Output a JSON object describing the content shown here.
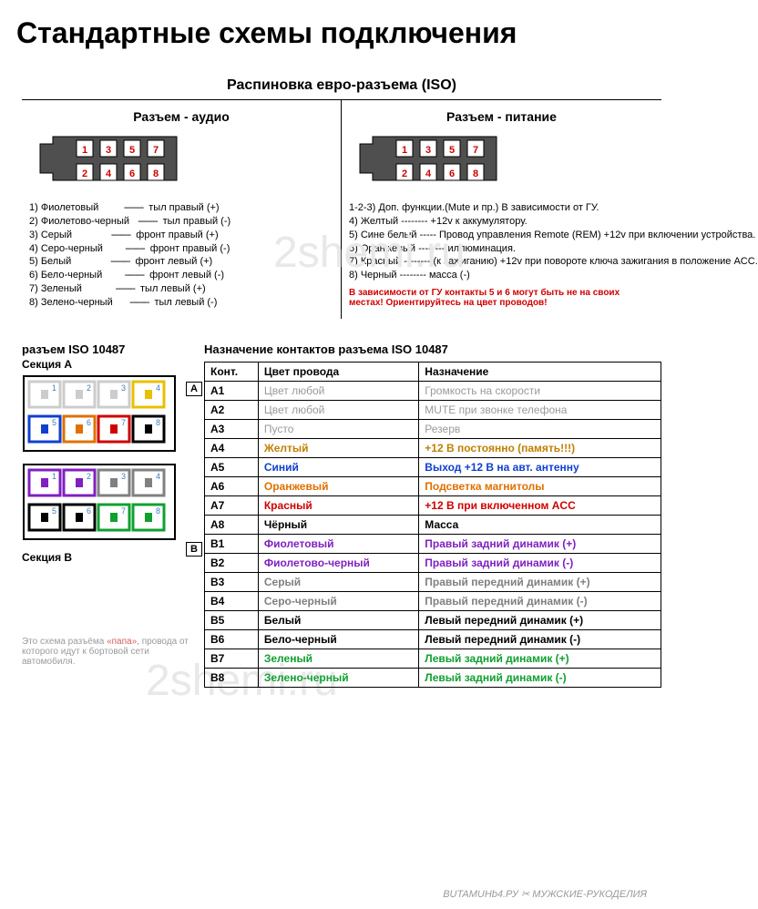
{
  "title": "Стандартные схемы подключения",
  "subtitle": "Распиновка евро-разъема  (ISO)",
  "watermark": "2shemi.ru",
  "audio": {
    "title": "Разъем - аудио",
    "connector": {
      "fill": "#4f4f4f",
      "stroke": "#000000",
      "pin_fill": "#ffffff",
      "top_row": [
        "1",
        "3",
        "5",
        "7"
      ],
      "bot_row": [
        "2",
        "4",
        "6",
        "8"
      ],
      "num_color": "#d00000"
    },
    "pins": [
      {
        "n": "1",
        "name": "Фиолетовый",
        "func": "тыл правый (+)"
      },
      {
        "n": "2",
        "name": "Фиолетово-черный",
        "func": "тыл правый (-)"
      },
      {
        "n": "3",
        "name": "Серый",
        "func": "фронт правый (+)"
      },
      {
        "n": "4",
        "name": "Серо-черный",
        "func": "фронт правый (-)"
      },
      {
        "n": "5",
        "name": "Белый",
        "func": "фронт левый (+)"
      },
      {
        "n": "6",
        "name": "Бело-черный",
        "func": "фронт левый (-)"
      },
      {
        "n": "7",
        "name": "Зеленый",
        "func": "тыл левый (+)"
      },
      {
        "n": "8",
        "name": "Зелено-черный",
        "func": "тыл левый (-)"
      }
    ]
  },
  "power": {
    "title": "Разъем - питание",
    "connector": {
      "fill": "#4f4f4f",
      "stroke": "#000000",
      "pin_fill": "#ffffff",
      "top_row": [
        "1",
        "3",
        "5",
        "7"
      ],
      "bot_row": [
        "2",
        "4",
        "6",
        "8"
      ],
      "num_color": "#d00000"
    },
    "lines": [
      "1-2-3) Доп. функции.(Mute и пр.) В зависимости от ГУ.",
      "4) Желтый    --------    +12v к аккумулятору.",
      "5) Сине белый -----   Провод управления Remote (REM) +12v при включении устройства.",
      "6) Оранжевый --------   иллюминация.",
      "7) Красный   --------   (к зажиганию) +12v при повороте ключа зажигания в положение ACC.",
      "8) Черный   --------    масса (-)"
    ],
    "note": "В зависимости от ГУ контакты 5 и 6 могут быть не на своих местах! Ориентируйтесь на цвет проводов!"
  },
  "iso10487": {
    "left_head": "разъем ISO 10487",
    "secA_label": "Секция A",
    "secB_label": "Секция B",
    "footnote_pre": "Это схема разъёма ",
    "footnote_red": "«папа»",
    "footnote_post": ", провода от которого идут к бортовой сети автомобиля.",
    "table_head": "Назначение контактов разъема ISO 10487",
    "cols": [
      "Конт.",
      "Цвет провода",
      "Назначение"
    ],
    "tag_A": "A",
    "tag_B": "B",
    "watermark_bottom": "BUTAMUHb4.РУ ✂ МУЖСКИЕ-РУКОДЕЛИЯ",
    "section_colors": {
      "outline": "#000000",
      "fill": "#ffffff",
      "A": {
        "A4": "#e8c000",
        "A5": "#1040d0",
        "A6": "#e07000",
        "A7": "#d00000",
        "A8": "#000000"
      },
      "B": {
        "B1": "#8020c0",
        "B2": "#8020c0",
        "B3": "#808080",
        "B4": "#808080",
        "B5": "#000000",
        "B6": "#000000",
        "B7": "#10a030",
        "B8": "#10a030"
      }
    },
    "rows": [
      {
        "k": "A1",
        "color": "Цвет любой",
        "assign": "Громкость на скорости",
        "txt": "#9a9a9a",
        "bold": false
      },
      {
        "k": "A2",
        "color": "Цвет любой",
        "assign": "MUTE при звонке телефона",
        "txt": "#9a9a9a",
        "bold": false
      },
      {
        "k": "A3",
        "color": "Пусто",
        "assign": "Резерв",
        "txt": "#9a9a9a",
        "bold": false
      },
      {
        "k": "A4",
        "color": "Желтый",
        "assign": "+12 В постоянно (память!!!)",
        "txt": "#c08000",
        "bold": true
      },
      {
        "k": "A5",
        "color": "Синий",
        "assign": "Выход +12 В на авт. антенну",
        "txt": "#1040d0",
        "bold": true
      },
      {
        "k": "A6",
        "color": "Оранжевый",
        "assign": "Подсветка магнитолы",
        "txt": "#e07000",
        "bold": true
      },
      {
        "k": "A7",
        "color": "Красный",
        "assign": "+12 В при включенном ACC",
        "txt": "#d00000",
        "bold": true
      },
      {
        "k": "A8",
        "color": "Чёрный",
        "assign": "Масса",
        "txt": "#000000",
        "bold": true
      },
      {
        "k": "B1",
        "color": "Фиолетовый",
        "assign": "Правый задний динамик (+)",
        "txt": "#8020c0",
        "bold": true
      },
      {
        "k": "B2",
        "color": "Фиолетово-черный",
        "assign": "Правый задний динамик (-)",
        "txt": "#8020c0",
        "bold": true
      },
      {
        "k": "B3",
        "color": "Серый",
        "assign": "Правый передний динамик (+)",
        "txt": "#808080",
        "bold": true
      },
      {
        "k": "B4",
        "color": "Серо-черный",
        "assign": "Правый передний динамик (-)",
        "txt": "#808080",
        "bold": true
      },
      {
        "k": "B5",
        "color": "Белый",
        "assign": "Левый передний динамик (+)",
        "txt": "#000000",
        "bold": true
      },
      {
        "k": "B6",
        "color": "Бело-черный",
        "assign": "Левый передний динамик (-)",
        "txt": "#000000",
        "bold": true
      },
      {
        "k": "B7",
        "color": "Зеленый",
        "assign": "Левый задний динамик (+)",
        "txt": "#10a030",
        "bold": true
      },
      {
        "k": "B8",
        "color": "Зелено-черный",
        "assign": "Левый задний динамик (-)",
        "txt": "#10a030",
        "bold": true
      }
    ]
  }
}
